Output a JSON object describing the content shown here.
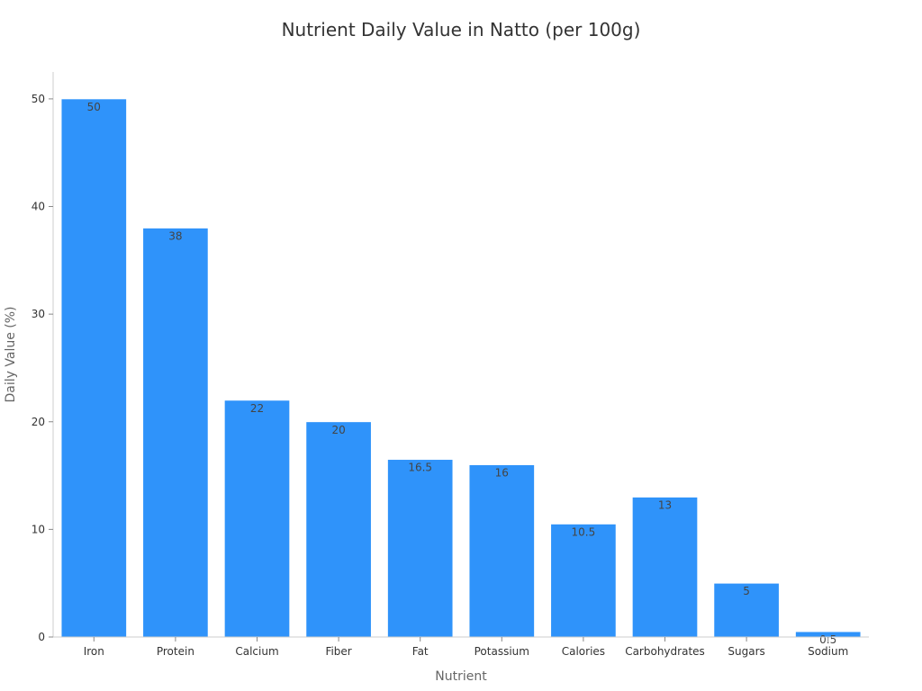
{
  "chart_data": {
    "type": "bar",
    "title": "Nutrient Daily Value in Natto (per 100g)",
    "xlabel": "Nutrient",
    "ylabel": "Daily Value (%)",
    "categories": [
      "Iron",
      "Protein",
      "Calcium",
      "Fiber",
      "Fat",
      "Potassium",
      "Calories",
      "Carbohydrates",
      "Sugars",
      "Sodium"
    ],
    "values": [
      50,
      38,
      22,
      20,
      16.5,
      16,
      10.5,
      13,
      5,
      0.5
    ],
    "data_labels": [
      "50",
      "38",
      "22",
      "20",
      "16.5",
      "16",
      "10.5",
      "13",
      "5",
      "0.5"
    ],
    "ylim": [
      0,
      52.5
    ],
    "yticks": [
      0,
      10,
      20,
      30,
      40,
      50
    ],
    "bar_color": "#2f93fa",
    "grid": false,
    "legend": "none"
  }
}
